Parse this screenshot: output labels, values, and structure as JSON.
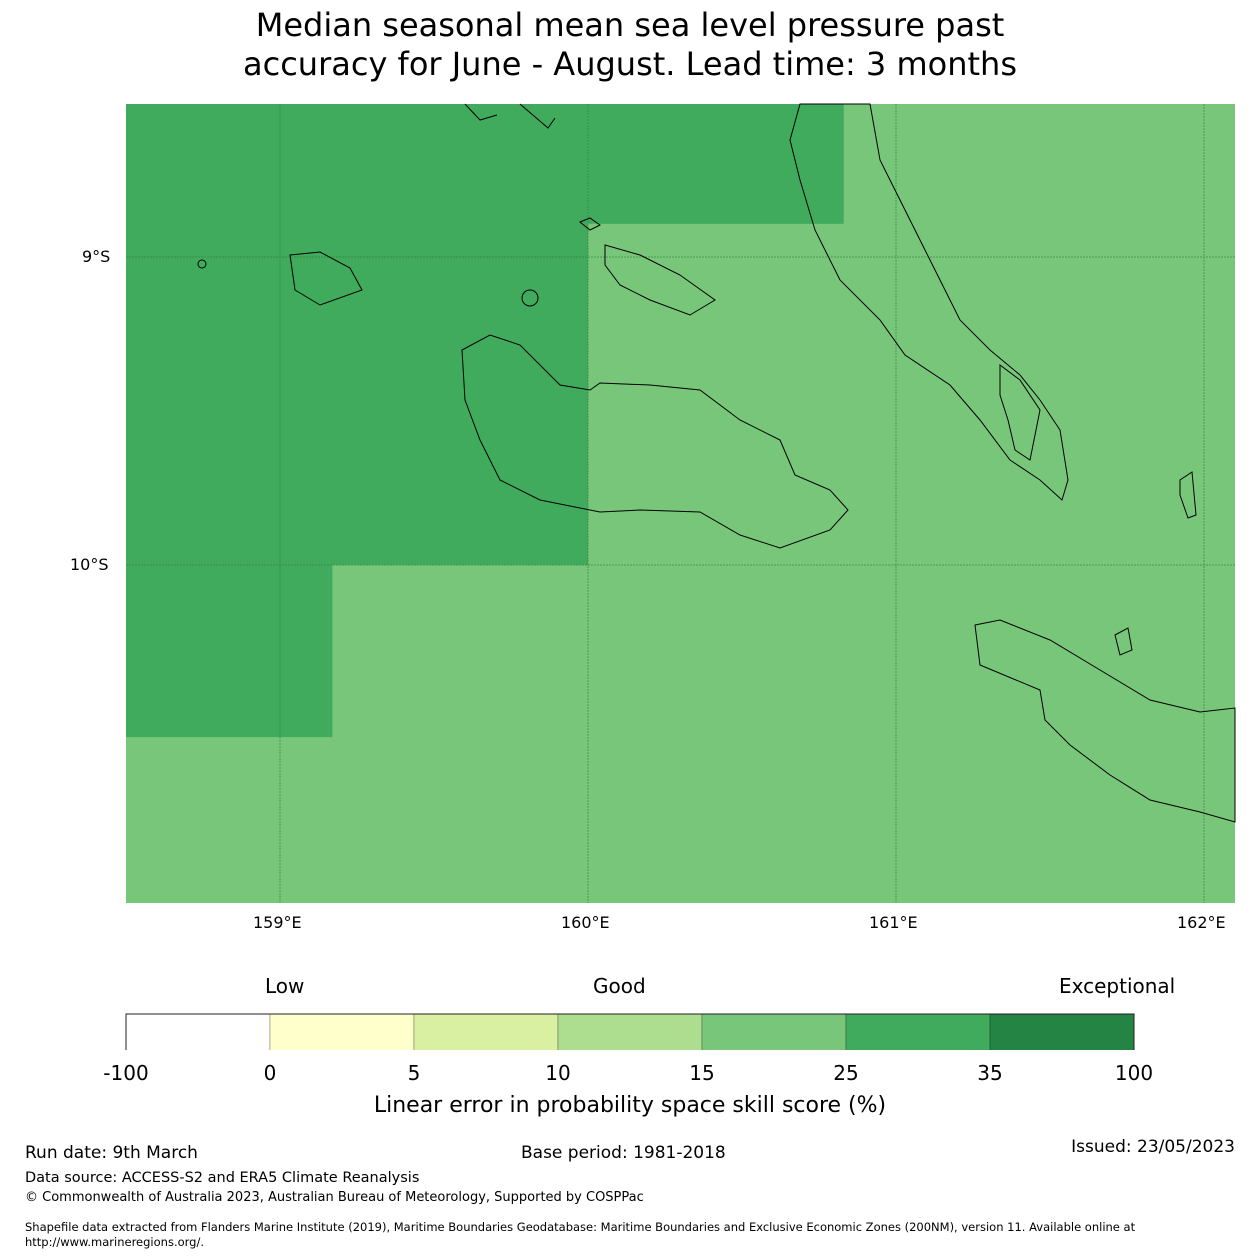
{
  "title_line1": "Median seasonal mean sea level pressure past",
  "title_line2": "accuracy for June - August. Lead time: 3 months",
  "chart_data": {
    "type": "heatmap",
    "title": "Median seasonal mean sea level pressure past accuracy for June - August. Lead time: 3 months",
    "x_ticks": [
      "159°E",
      "160°E",
      "161°E",
      "162°E"
    ],
    "y_ticks": [
      "9°S",
      "10°S"
    ],
    "lon_range": [
      158.5,
      162.1
    ],
    "lat_range": [
      -11.1,
      -8.5
    ],
    "grid": true,
    "background_category": "15-25",
    "regions": [
      {
        "lon": [
          158.5,
          160.0
        ],
        "lat": [
          -10.0,
          -8.5
        ],
        "category": "25-35"
      },
      {
        "lon": [
          160.0,
          160.83
        ],
        "lat": [
          -8.89,
          -8.5
        ],
        "category": "25-35"
      },
      {
        "lon": [
          158.5,
          159.17
        ],
        "lat": [
          -10.56,
          -10.0
        ],
        "category": "25-35"
      }
    ],
    "colorbar": {
      "label": "Linear error in probability space skill score (%)",
      "qualitative": [
        "Low",
        "Good",
        "Exceptional"
      ],
      "boundaries": [
        "-100",
        "0",
        "5",
        "10",
        "15",
        "25",
        "35",
        "100"
      ],
      "colors": [
        "#ffffff",
        "#ffffcc",
        "#d9f0a3",
        "#addd8e",
        "#78c679",
        "#41ab5d",
        "#238443"
      ]
    }
  },
  "footer": {
    "run_date": "Run date: 9th March",
    "base_period": "Base period: 1981-2018",
    "issued": "Issued: 23/05/2023",
    "data_source": "Data source: ACCESS-S2 and ERA5 Climate Reanalysis",
    "copyright": "© Commonwealth of Australia 2023, Australian Bureau of Meteorology, Supported by COSPPac",
    "shapefile1": "Shapefile data extracted from Flanders Marine Institute (2019), Maritime Boundaries Geodatabase: Maritime Boundaries and Exclusive Economic Zones (200NM), version 11. Available online at",
    "shapefile2": "http://www.marineregions.org/."
  }
}
